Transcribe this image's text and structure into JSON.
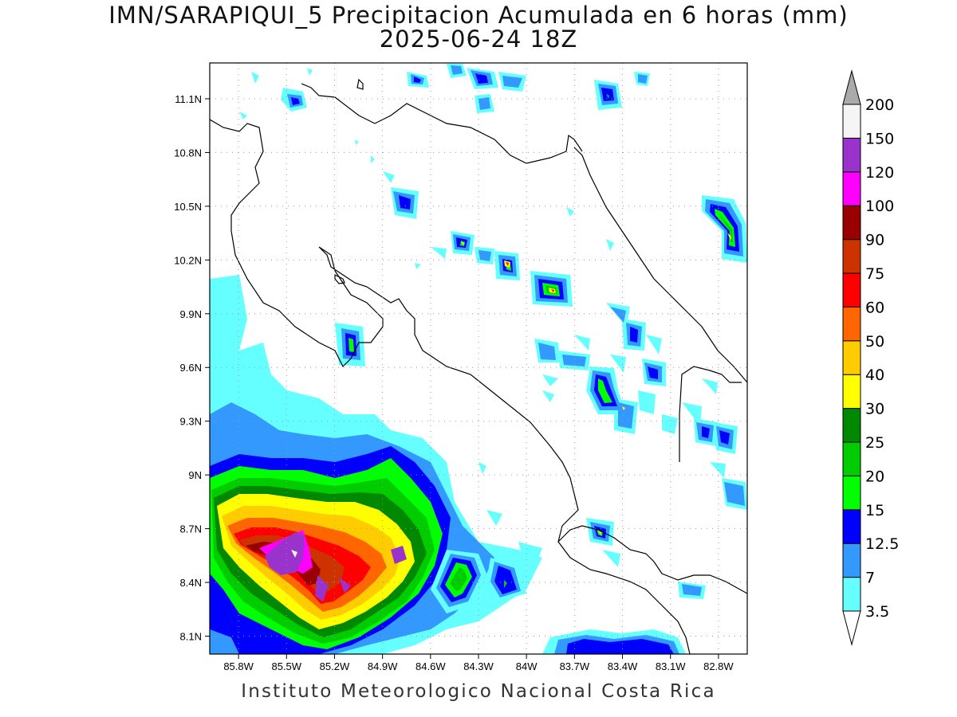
{
  "title": "IMN/SARAPIQUI_5 Precipitacion Acumulada en 6 horas (mm)",
  "subtitle": "2025-06-24 18Z",
  "footer": "Instituto Meteorologico Nacional Costa Rica",
  "map": {
    "lon_range": [
      -85.98,
      -82.62
    ],
    "lat_range": [
      8.0,
      11.3
    ],
    "lon_ticks": [
      "85.8W",
      "85.5W",
      "85.2W",
      "84.9W",
      "84.6W",
      "84.3W",
      "84W",
      "83.7W",
      "83.4W",
      "83.1W",
      "82.8W"
    ],
    "lat_ticks": [
      "11.1N",
      "10.8N",
      "10.5N",
      "10.2N",
      "9.9N",
      "9.6N",
      "9.3N",
      "9N",
      "8.7N",
      "8.4N",
      "8.1N"
    ],
    "grid": true
  },
  "colorbar": {
    "levels": [
      "3.5",
      "7",
      "12.5",
      "15",
      "20",
      "25",
      "30",
      "40",
      "50",
      "60",
      "75",
      "90",
      "100",
      "120",
      "150",
      "200"
    ],
    "colors": [
      "#66ffff",
      "#3399ff",
      "#0000ff",
      "#00ff00",
      "#00cc00",
      "#008800",
      "#ffff00",
      "#ffcc00",
      "#ff6600",
      "#ff0000",
      "#cc3300",
      "#990000",
      "#ff00ff",
      "#9933cc",
      "#f5f5f5"
    ],
    "over_color": "#aaaaaa",
    "under_color": "#ffffff"
  },
  "precip_colors": {
    "l1": "#66ffff",
    "l2": "#3399ff",
    "l3": "#0000ff",
    "l4": "#00ff00",
    "l5": "#00cc00",
    "l6": "#008800",
    "l7": "#ffff00",
    "l8": "#ffcc00",
    "l9": "#ff6600",
    "l10": "#ff0000",
    "l11": "#cc3300",
    "l12": "#990000",
    "l13": "#ff00ff",
    "l14": "#9933cc",
    "l15": "#f5f5f5"
  }
}
